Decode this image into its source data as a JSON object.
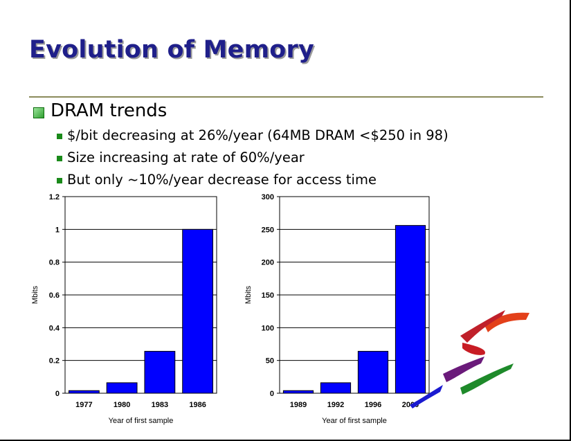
{
  "slide": {
    "title": "Evolution of Memory",
    "bullet": "DRAM trends",
    "sub_bullets": [
      "$/bit decreasing at 26%/year (64MB DRAM <$250 in 98)",
      "Size increasing at rate of 60%/year",
      "But only ~10%/year decrease for access time"
    ]
  },
  "colors": {
    "title": "#1f1f8a",
    "bar": "#0000ff",
    "bullet_green": "#1a8a1a"
  },
  "chart_data": [
    {
      "type": "bar",
      "categories": [
        "1977",
        "1980",
        "1983",
        "1986"
      ],
      "values": [
        0.016,
        0.064,
        0.256,
        1
      ],
      "xlabel": "Year of first sample",
      "ylabel": "Mbits",
      "ylim": [
        0,
        1.2
      ],
      "yticks": [
        "0",
        "0.2",
        "0.4",
        "0.6",
        "0.8",
        "1",
        "1.2"
      ],
      "ytick_values": [
        0,
        0.2,
        0.4,
        0.6,
        0.8,
        1,
        1.2
      ],
      "grid": true,
      "legend": "none"
    },
    {
      "type": "bar",
      "categories": [
        "1989",
        "1992",
        "1996",
        "2000"
      ],
      "values": [
        4,
        16,
        64,
        256
      ],
      "xlabel": "Year of first sample",
      "ylabel": "Mbits",
      "ylim": [
        0,
        300
      ],
      "yticks": [
        "0",
        "50",
        "100",
        "150",
        "200",
        "250",
        "300"
      ],
      "ytick_values": [
        0,
        50,
        100,
        150,
        200,
        250,
        300
      ],
      "grid": true,
      "legend": "none"
    }
  ]
}
